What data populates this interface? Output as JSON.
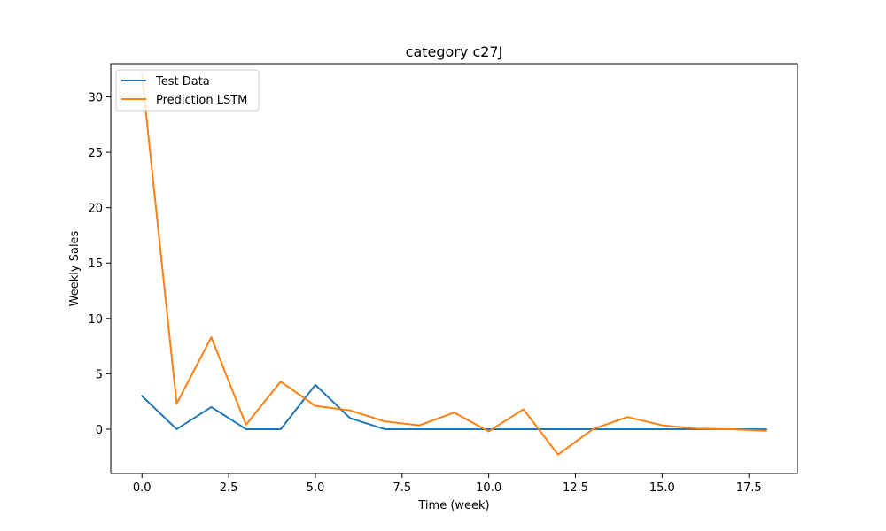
{
  "chart_data": {
    "type": "line",
    "title": "category c27J",
    "xlabel": "Time (week)",
    "ylabel": "Weekly Sales",
    "xlim": [
      -0.9,
      18.9
    ],
    "ylim": [
      -4.0,
      33.0
    ],
    "xticks": [
      0.0,
      2.5,
      5.0,
      7.5,
      10.0,
      12.5,
      15.0,
      17.5
    ],
    "xtick_labels": [
      "0.0",
      "2.5",
      "5.0",
      "7.5",
      "10.0",
      "12.5",
      "15.0",
      "17.5"
    ],
    "yticks": [
      0,
      5,
      10,
      15,
      20,
      25,
      30
    ],
    "ytick_labels": [
      "0",
      "5",
      "10",
      "15",
      "20",
      "25",
      "30"
    ],
    "grid": false,
    "legend_position": "top-left",
    "x": [
      0,
      1,
      2,
      3,
      4,
      5,
      6,
      7,
      8,
      9,
      10,
      11,
      12,
      13,
      14,
      15,
      16,
      17,
      18
    ],
    "series": [
      {
        "name": "Test Data",
        "color": "#1f77b4",
        "values": [
          3,
          0,
          2,
          0,
          0,
          4,
          1,
          0,
          0,
          0,
          0,
          0,
          0,
          0,
          0,
          0,
          0,
          0,
          0
        ]
      },
      {
        "name": "Prediction LSTM",
        "color": "#ff7f0e",
        "values": [
          32.0,
          2.3,
          8.3,
          0.4,
          4.3,
          2.1,
          1.7,
          0.7,
          0.35,
          1.5,
          -0.2,
          1.8,
          -2.3,
          0.0,
          1.1,
          0.35,
          0.05,
          0.0,
          -0.15
        ]
      }
    ]
  }
}
